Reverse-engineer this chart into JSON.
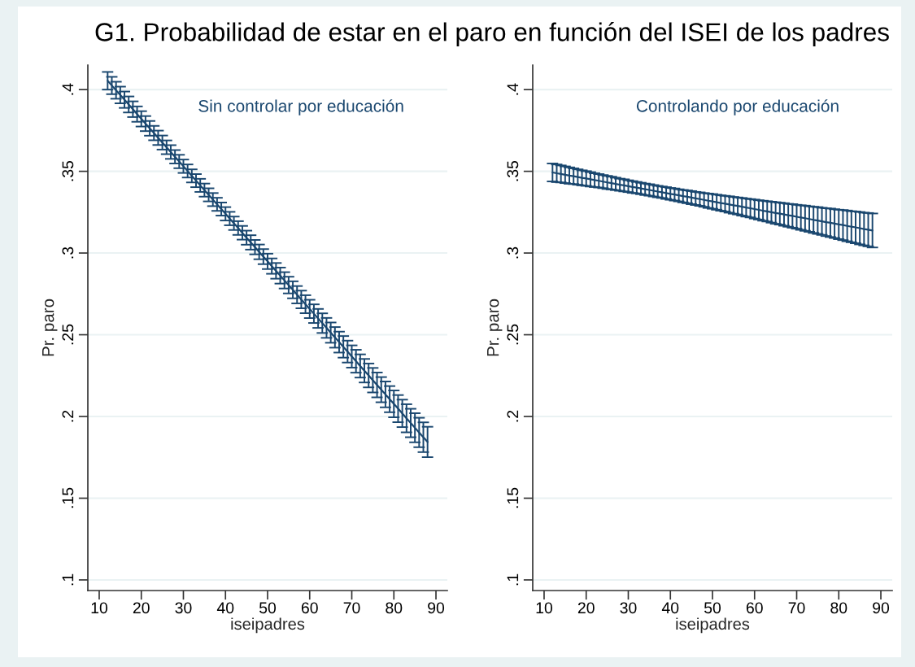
{
  "chart_data": [
    {
      "type": "line",
      "title": "G1. Probabilidad de estar en el paro en función del ISEI de los padres",
      "subtitle": "Sin controlar por educación",
      "xlabel": "iseipadres",
      "ylabel": "Pr. paro",
      "color": "#1a476f",
      "grid": "y",
      "xlim": [
        7.3,
        92.7
      ],
      "xticks": [
        10,
        20,
        30,
        40,
        50,
        60,
        70,
        80,
        90
      ],
      "ylim": [
        0.0935,
        0.415
      ],
      "yticks": [
        {
          "value": 0.1,
          "label": ".1"
        },
        {
          "value": 0.15,
          "label": ".15"
        },
        {
          "value": 0.2,
          "label": ".2"
        },
        {
          "value": 0.25,
          "label": ".25"
        },
        {
          "value": 0.3,
          "label": ".3"
        },
        {
          "value": 0.35,
          "label": ".35"
        },
        {
          "value": 0.4,
          "label": ".4"
        }
      ],
      "x": [
        12,
        13,
        14,
        15,
        16,
        17,
        18,
        19,
        20,
        21,
        22,
        23,
        24,
        25,
        26,
        27,
        28,
        29,
        30,
        31,
        32,
        33,
        34,
        35,
        36,
        37,
        38,
        39,
        40,
        41,
        42,
        43,
        44,
        45,
        46,
        47,
        48,
        49,
        50,
        51,
        52,
        53,
        54,
        55,
        56,
        57,
        58,
        59,
        60,
        61,
        62,
        63,
        64,
        65,
        66,
        67,
        68,
        69,
        70,
        71,
        72,
        73,
        74,
        75,
        76,
        77,
        78,
        79,
        80,
        81,
        82,
        83,
        84,
        85,
        86,
        87,
        88
      ],
      "values": [
        0.4054,
        0.4025,
        0.3996,
        0.3967,
        0.3938,
        0.3909,
        0.388,
        0.385,
        0.3821,
        0.3792,
        0.3763,
        0.3734,
        0.3705,
        0.3676,
        0.3647,
        0.3618,
        0.3589,
        0.356,
        0.3531,
        0.3502,
        0.3472,
        0.3443,
        0.3414,
        0.3385,
        0.3356,
        0.3327,
        0.3298,
        0.3269,
        0.324,
        0.3211,
        0.3182,
        0.3153,
        0.3124,
        0.3094,
        0.3065,
        0.3036,
        0.3007,
        0.2978,
        0.2949,
        0.292,
        0.2891,
        0.2862,
        0.2833,
        0.2804,
        0.2775,
        0.2745,
        0.2716,
        0.2687,
        0.2658,
        0.2629,
        0.26,
        0.2571,
        0.2542,
        0.2513,
        0.2484,
        0.2455,
        0.2426,
        0.2397,
        0.2367,
        0.2338,
        0.2309,
        0.228,
        0.2251,
        0.2222,
        0.2193,
        0.2164,
        0.2135,
        0.2106,
        0.2077,
        0.2048,
        0.2019,
        0.1989,
        0.196,
        0.1931,
        0.1902,
        0.1873,
        0.1844
      ],
      "errors": [
        0.0054,
        0.0053,
        0.0052,
        0.0051,
        0.005,
        0.0049,
        0.0048,
        0.0047,
        0.0047,
        0.0046,
        0.0045,
        0.0044,
        0.0044,
        0.0043,
        0.0042,
        0.0042,
        0.0041,
        0.0041,
        0.0041,
        0.004,
        0.004,
        0.004,
        0.004,
        0.004,
        0.004,
        0.004,
        0.004,
        0.004,
        0.0041,
        0.0041,
        0.0041,
        0.0042,
        0.0042,
        0.0043,
        0.0044,
        0.0044,
        0.0045,
        0.0046,
        0.0047,
        0.0047,
        0.0048,
        0.0049,
        0.005,
        0.0051,
        0.0052,
        0.0053,
        0.0054,
        0.0055,
        0.0056,
        0.0057,
        0.0058,
        0.006,
        0.0061,
        0.0062,
        0.0063,
        0.0064,
        0.0066,
        0.0067,
        0.0068,
        0.007,
        0.0071,
        0.0072,
        0.0073,
        0.0075,
        0.0076,
        0.0077,
        0.0079,
        0.008,
        0.0082,
        0.0083,
        0.0084,
        0.0086,
        0.0087,
        0.0089,
        0.009,
        0.0091,
        0.0093
      ]
    },
    {
      "type": "line",
      "subtitle": "Controlando por educación",
      "xlabel": "iseipadres",
      "ylabel": "Pr. paro",
      "color": "#1a476f",
      "grid": "y",
      "xlim": [
        7.3,
        92.7
      ],
      "xticks": [
        10,
        20,
        30,
        40,
        50,
        60,
        70,
        80,
        90
      ],
      "ylim": [
        0.0935,
        0.415
      ],
      "yticks": [
        {
          "value": 0.1,
          "label": ".1"
        },
        {
          "value": 0.15,
          "label": ".15"
        },
        {
          "value": 0.2,
          "label": ".2"
        },
        {
          "value": 0.25,
          "label": ".25"
        },
        {
          "value": 0.3,
          "label": ".3"
        },
        {
          "value": 0.35,
          "label": ".35"
        },
        {
          "value": 0.4,
          "label": ".4"
        }
      ],
      "x": [
        12,
        13,
        14,
        15,
        16,
        17,
        18,
        19,
        20,
        21,
        22,
        23,
        24,
        25,
        26,
        27,
        28,
        29,
        30,
        31,
        32,
        33,
        34,
        35,
        36,
        37,
        38,
        39,
        40,
        41,
        42,
        43,
        44,
        45,
        46,
        47,
        48,
        49,
        50,
        51,
        52,
        53,
        54,
        55,
        56,
        57,
        58,
        59,
        60,
        61,
        62,
        63,
        64,
        65,
        66,
        67,
        68,
        69,
        70,
        71,
        72,
        73,
        74,
        75,
        76,
        77,
        78,
        79,
        80,
        81,
        82,
        83,
        84,
        85,
        86,
        87,
        88
      ],
      "values": [
        0.3493,
        0.3488,
        0.3484,
        0.3479,
        0.3474,
        0.347,
        0.3465,
        0.346,
        0.3456,
        0.3451,
        0.3446,
        0.3442,
        0.3437,
        0.3432,
        0.3428,
        0.3423,
        0.3418,
        0.3414,
        0.3409,
        0.3404,
        0.34,
        0.3395,
        0.339,
        0.3386,
        0.3381,
        0.3376,
        0.3372,
        0.3367,
        0.3362,
        0.3358,
        0.3353,
        0.3348,
        0.3344,
        0.3339,
        0.3334,
        0.333,
        0.3325,
        0.332,
        0.3316,
        0.3311,
        0.3306,
        0.3302,
        0.3297,
        0.3292,
        0.3288,
        0.3283,
        0.3278,
        0.3274,
        0.3269,
        0.3264,
        0.3259,
        0.3255,
        0.325,
        0.3245,
        0.3241,
        0.3236,
        0.3231,
        0.3227,
        0.3222,
        0.3217,
        0.3213,
        0.3208,
        0.3203,
        0.3199,
        0.3194,
        0.3189,
        0.3185,
        0.318,
        0.3175,
        0.3171,
        0.3166,
        0.3161,
        0.3157,
        0.3152,
        0.3147,
        0.3143,
        0.3138
      ],
      "errors": [
        0.0055,
        0.0054,
        0.0052,
        0.0051,
        0.005,
        0.0048,
        0.0047,
        0.0046,
        0.0045,
        0.0044,
        0.0042,
        0.0041,
        0.004,
        0.004,
        0.0039,
        0.0038,
        0.0037,
        0.0037,
        0.0036,
        0.0036,
        0.0035,
        0.0035,
        0.0035,
        0.0035,
        0.0035,
        0.0035,
        0.0035,
        0.0036,
        0.0036,
        0.0037,
        0.0037,
        0.0038,
        0.0039,
        0.004,
        0.004,
        0.0041,
        0.0042,
        0.0044,
        0.0045,
        0.0046,
        0.0047,
        0.0048,
        0.005,
        0.0051,
        0.0052,
        0.0054,
        0.0055,
        0.0056,
        0.0058,
        0.0059,
        0.0061,
        0.0062,
        0.0064,
        0.0066,
        0.0067,
        0.0069,
        0.007,
        0.0072,
        0.0073,
        0.0075,
        0.0077,
        0.0078,
        0.008,
        0.0082,
        0.0083,
        0.0085,
        0.0087,
        0.0088,
        0.009,
        0.0092,
        0.0094,
        0.0095,
        0.0097,
        0.0099,
        0.01,
        0.0102,
        0.0104
      ]
    }
  ]
}
